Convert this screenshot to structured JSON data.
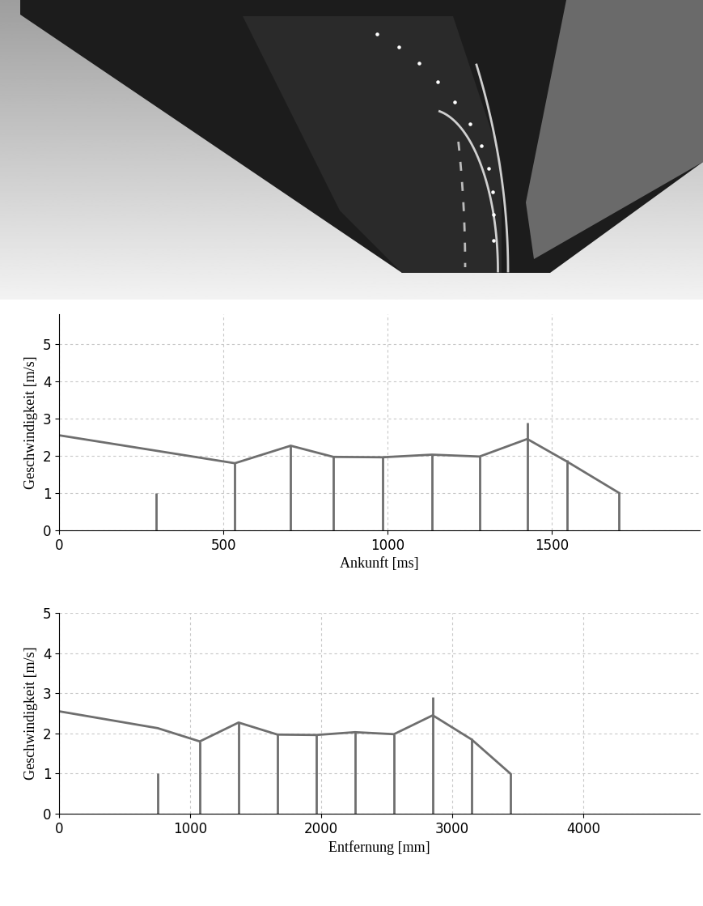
{
  "chart_data": [
    {
      "type": "line",
      "xlabel": "Ankunft [ms]",
      "ylabel": "Geschwindigkeit [m/s]",
      "xlim": [
        0,
        1950
      ],
      "ylim": [
        0,
        5.8
      ],
      "xticks": [
        0,
        500,
        1000,
        1500
      ],
      "yticks": [
        0,
        1,
        2,
        3,
        4,
        5
      ],
      "grid": true,
      "series": [
        {
          "type": "line",
          "color": "#6e6e6e",
          "line_style": "solid",
          "x": [
            0,
            535,
            705,
            835,
            985,
            1135,
            1280,
            1425,
            1545,
            1705
          ],
          "values": [
            2.55,
            1.8,
            2.27,
            1.97,
            1.96,
            2.03,
            1.98,
            2.45,
            1.85,
            1.0
          ]
        },
        {
          "type": "stem",
          "color": "#6e6e6e",
          "x": [
            295,
            535,
            705,
            835,
            985,
            1135,
            1280,
            1425,
            1545,
            1705
          ],
          "values": [
            1.0,
            1.8,
            2.27,
            1.97,
            1.96,
            2.03,
            1.98,
            2.9,
            1.88,
            1.0
          ]
        }
      ]
    },
    {
      "type": "line",
      "xlabel": "Entfernung [mm]",
      "ylabel": "Geschwindigkeit [m/s]",
      "xlim": [
        0,
        4890
      ],
      "ylim": [
        0,
        5
      ],
      "xticks": [
        0,
        1000,
        2000,
        3000,
        4000
      ],
      "yticks": [
        0,
        1,
        2,
        3,
        4,
        5
      ],
      "grid": true,
      "series": [
        {
          "type": "line",
          "color": "#6e6e6e",
          "line_style": "solid",
          "x": [
            0,
            753,
            1074,
            1370,
            1667,
            1963,
            2259,
            2556,
            2852,
            3148,
            3444
          ],
          "values": [
            2.55,
            2.13,
            1.8,
            2.27,
            1.97,
            1.96,
            2.03,
            1.98,
            2.45,
            1.85,
            1.0
          ]
        },
        {
          "type": "stem",
          "color": "#6e6e6e",
          "x": [
            753,
            1074,
            1370,
            1667,
            1963,
            2259,
            2556,
            2852,
            3148,
            3444
          ],
          "values": [
            1.0,
            1.8,
            2.27,
            1.97,
            1.96,
            2.03,
            1.98,
            2.9,
            1.88,
            1.0
          ]
        }
      ]
    }
  ]
}
